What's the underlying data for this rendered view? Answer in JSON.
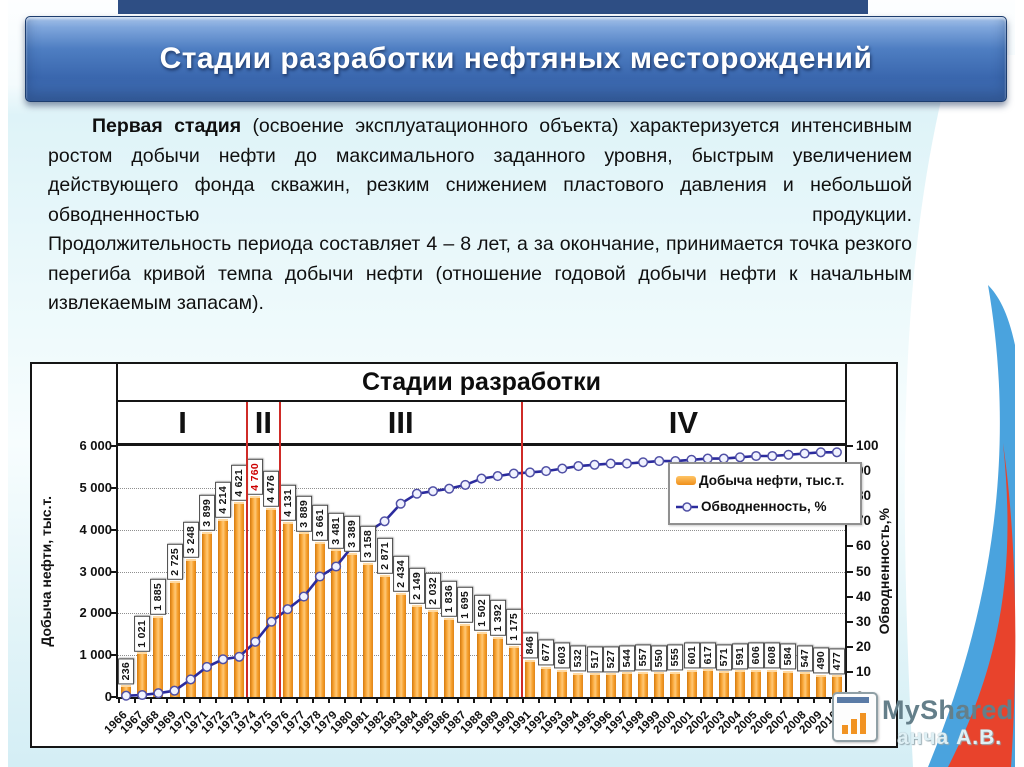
{
  "slide": {
    "title": "Стадии разработки нефтяных месторождений",
    "paragraph": {
      "lead": "Первая стадия",
      "body": " (освоение эксплуатационного объекта) характеризуется интенсивным ростом добычи нефти до максимального заданного уровня, быстрым увеличением действующего фонда скважин, резким снижением пластового давления и небольшой обводненностью продукции.",
      "second": "Продолжительность периода составляет 4 – 8 лет, а за окончание, принимается точка резкого перегиба кривой темпа добычи нефти (отношение годовой добычи нефти к начальным извлекаемым запасам)."
    }
  },
  "watermark": {
    "brand": "MyShared",
    "author": "анча А.В."
  },
  "chart_data": {
    "type": "bar",
    "title": "Стадии разработки",
    "categories": [
      1966,
      1967,
      1968,
      1969,
      1970,
      1971,
      1972,
      1973,
      1974,
      1975,
      1976,
      1977,
      1978,
      1979,
      1980,
      1981,
      1982,
      1983,
      1984,
      1985,
      1986,
      1987,
      1988,
      1989,
      1990,
      1991,
      1992,
      1993,
      1994,
      1995,
      1996,
      1997,
      1998,
      1999,
      2000,
      2001,
      2002,
      2003,
      2004,
      2005,
      2006,
      2007,
      2008,
      2009,
      2010
    ],
    "series": [
      {
        "name": "Добыча нефти, тыс.т.",
        "type": "bar",
        "axis": "left",
        "color": "#F79C2D",
        "values": [
          236,
          1021,
          1885,
          2725,
          3248,
          3899,
          4214,
          4621,
          4760,
          4476,
          4131,
          3889,
          3661,
          3481,
          3389,
          3158,
          2871,
          2434,
          2149,
          2032,
          1836,
          1695,
          1502,
          1392,
          1175,
          846,
          677,
          603,
          532,
          517,
          527,
          544,
          557,
          550,
          555,
          601,
          617,
          571,
          591,
          606,
          608,
          584,
          547,
          490,
          477
        ]
      },
      {
        "name": "Обводненность, %",
        "type": "line",
        "axis": "right",
        "color": "#2B2B9E",
        "values": [
          0.5,
          0.8,
          1.5,
          2.5,
          7,
          12,
          15,
          16,
          22,
          30,
          35,
          40,
          48,
          52,
          60,
          66,
          70,
          77,
          81,
          82,
          83,
          84.5,
          87,
          88,
          89,
          89.5,
          90,
          91,
          92,
          92.5,
          93,
          93,
          93.5,
          94,
          94,
          94.5,
          95,
          95,
          95.5,
          96,
          96,
          96.5,
          97,
          97.5,
          97.5
        ]
      }
    ],
    "max_label": {
      "year": 1974,
      "value": 4760,
      "color": "#CC0000"
    },
    "stages": [
      {
        "label": "I",
        "start_year": 1966
      },
      {
        "label": "II",
        "start_year": 1974
      },
      {
        "label": "III",
        "start_year": 1976
      },
      {
        "label": "IV",
        "start_year": 1991
      }
    ],
    "stage_divider_color": "#CF2B27",
    "left_axis": {
      "label": "Добыча нефти, тыс.т.",
      "min": 0,
      "max": 6000,
      "tick_step": 1000,
      "ticks": [
        "0",
        "1 000",
        "2 000",
        "3 000",
        "4 000",
        "5 000",
        "6 000"
      ]
    },
    "right_axis": {
      "label": "Обводненность,%",
      "min": 0,
      "max": 100,
      "tick_step": 10,
      "ticks": [
        "0",
        "10",
        "20",
        "30",
        "40",
        "50",
        "60",
        "70",
        "80",
        "90",
        "100"
      ]
    },
    "legend": {
      "position": "upper right",
      "entries": [
        "Добыча нефти, тыс.т.",
        "Обводненность, %"
      ]
    },
    "grid": "horizontal dotted lines every 1000 on left axis"
  }
}
